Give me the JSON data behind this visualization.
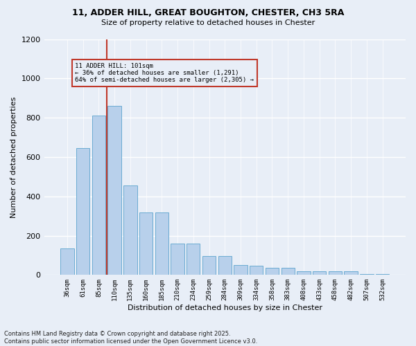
{
  "title_line1": "11, ADDER HILL, GREAT BOUGHTON, CHESTER, CH3 5RA",
  "title_line2": "Size of property relative to detached houses in Chester",
  "xlabel": "Distribution of detached houses by size in Chester",
  "ylabel": "Number of detached properties",
  "categories": [
    "36sqm",
    "61sqm",
    "85sqm",
    "110sqm",
    "135sqm",
    "160sqm",
    "185sqm",
    "210sqm",
    "234sqm",
    "259sqm",
    "284sqm",
    "309sqm",
    "334sqm",
    "358sqm",
    "383sqm",
    "408sqm",
    "433sqm",
    "458sqm",
    "482sqm",
    "507sqm",
    "532sqm"
  ],
  "values": [
    135,
    645,
    810,
    860,
    455,
    318,
    318,
    158,
    158,
    95,
    95,
    50,
    48,
    35,
    35,
    20,
    20,
    18,
    18,
    5,
    5
  ],
  "bar_color": "#b8d0eb",
  "bar_edge_color": "#6aabd2",
  "vline_index": 2.5,
  "vline_color": "#c0392b",
  "annotation_text": "11 ADDER HILL: 101sqm\n← 36% of detached houses are smaller (1,291)\n64% of semi-detached houses are larger (2,305) →",
  "annotation_box_color": "#c0392b",
  "ylim": [
    0,
    1200
  ],
  "yticks": [
    0,
    200,
    400,
    600,
    800,
    1000,
    1200
  ],
  "bg_color": "#e8eef7",
  "grid_color": "#ffffff",
  "footer_text": "Contains HM Land Registry data © Crown copyright and database right 2025.\nContains public sector information licensed under the Open Government Licence v3.0."
}
